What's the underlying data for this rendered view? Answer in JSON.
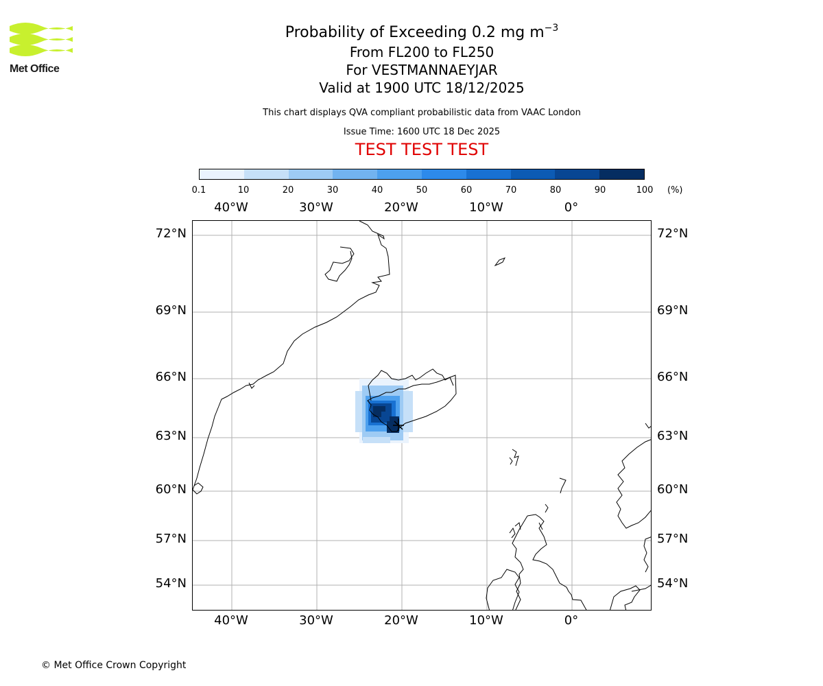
{
  "logo": {
    "text": "Met Office",
    "color": "#c8f02e"
  },
  "title": {
    "line1_prefix": "Probability of Exceeding 0.2 mg m",
    "line1_sup": "−3",
    "line2": "From FL200 to FL250",
    "line3": "For VESTMANNAEYJAR",
    "line4": "Valid at 1900 UTC 18/12/2025"
  },
  "description": "This chart displays QVA compliant probabilistic data from VAAC London",
  "issue_time": "Issue Time: 1600 UTC 18 Dec 2025",
  "test_banner": "TEST TEST TEST",
  "colorbar": {
    "ticks": [
      "0.1",
      "10",
      "20",
      "30",
      "40",
      "50",
      "60",
      "70",
      "80",
      "90",
      "100"
    ],
    "unit": "(%)",
    "colors": [
      "#eaf3fd",
      "#c6e0f8",
      "#9ecbf4",
      "#72b3f0",
      "#4da0ee",
      "#2d8aea",
      "#1871d2",
      "#0c5bb4",
      "#084693",
      "#052d61"
    ]
  },
  "axes": {
    "lon_labels": [
      "40°W",
      "30°W",
      "20°W",
      "10°W",
      "0°"
    ],
    "lat_labels": [
      "72°N",
      "69°N",
      "66°N",
      "63°N",
      "60°N",
      "57°N",
      "54°N"
    ]
  },
  "copyright": "© Met Office Crown Copyright"
}
